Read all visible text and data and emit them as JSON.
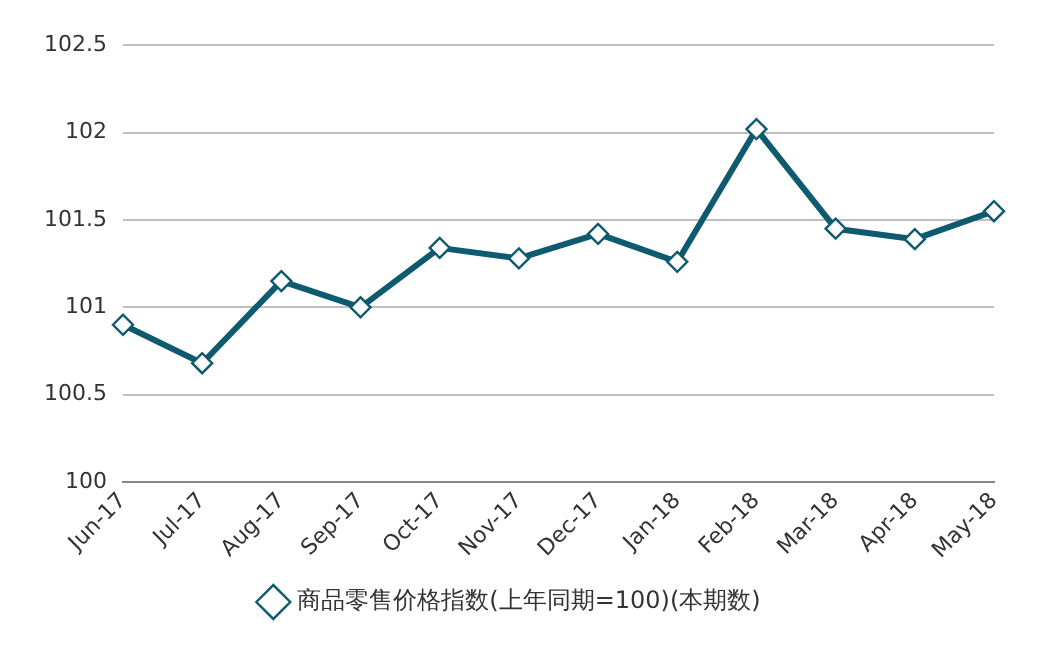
{
  "chart_data": {
    "type": "line",
    "categories": [
      "Jun-17",
      "Jul-17",
      "Aug-17",
      "Sep-17",
      "Oct-17",
      "Nov-17",
      "Dec-17",
      "Jan-18",
      "Feb-18",
      "Mar-18",
      "Apr-18",
      "May-18"
    ],
    "series": [
      {
        "name": "商品零售价格指数(上年同期=100)(本期数)",
        "color": "#0e5a6e",
        "values": [
          100.9,
          100.68,
          101.15,
          101.0,
          101.34,
          101.28,
          101.42,
          101.26,
          102.02,
          101.45,
          101.39,
          101.55
        ]
      }
    ],
    "ylim": [
      100,
      102.5
    ],
    "yticks": [
      100,
      100.5,
      101,
      101.5,
      102,
      102.5
    ],
    "grid": "y",
    "legend": "bottom",
    "marker": "diamond",
    "line_style": "solid"
  }
}
